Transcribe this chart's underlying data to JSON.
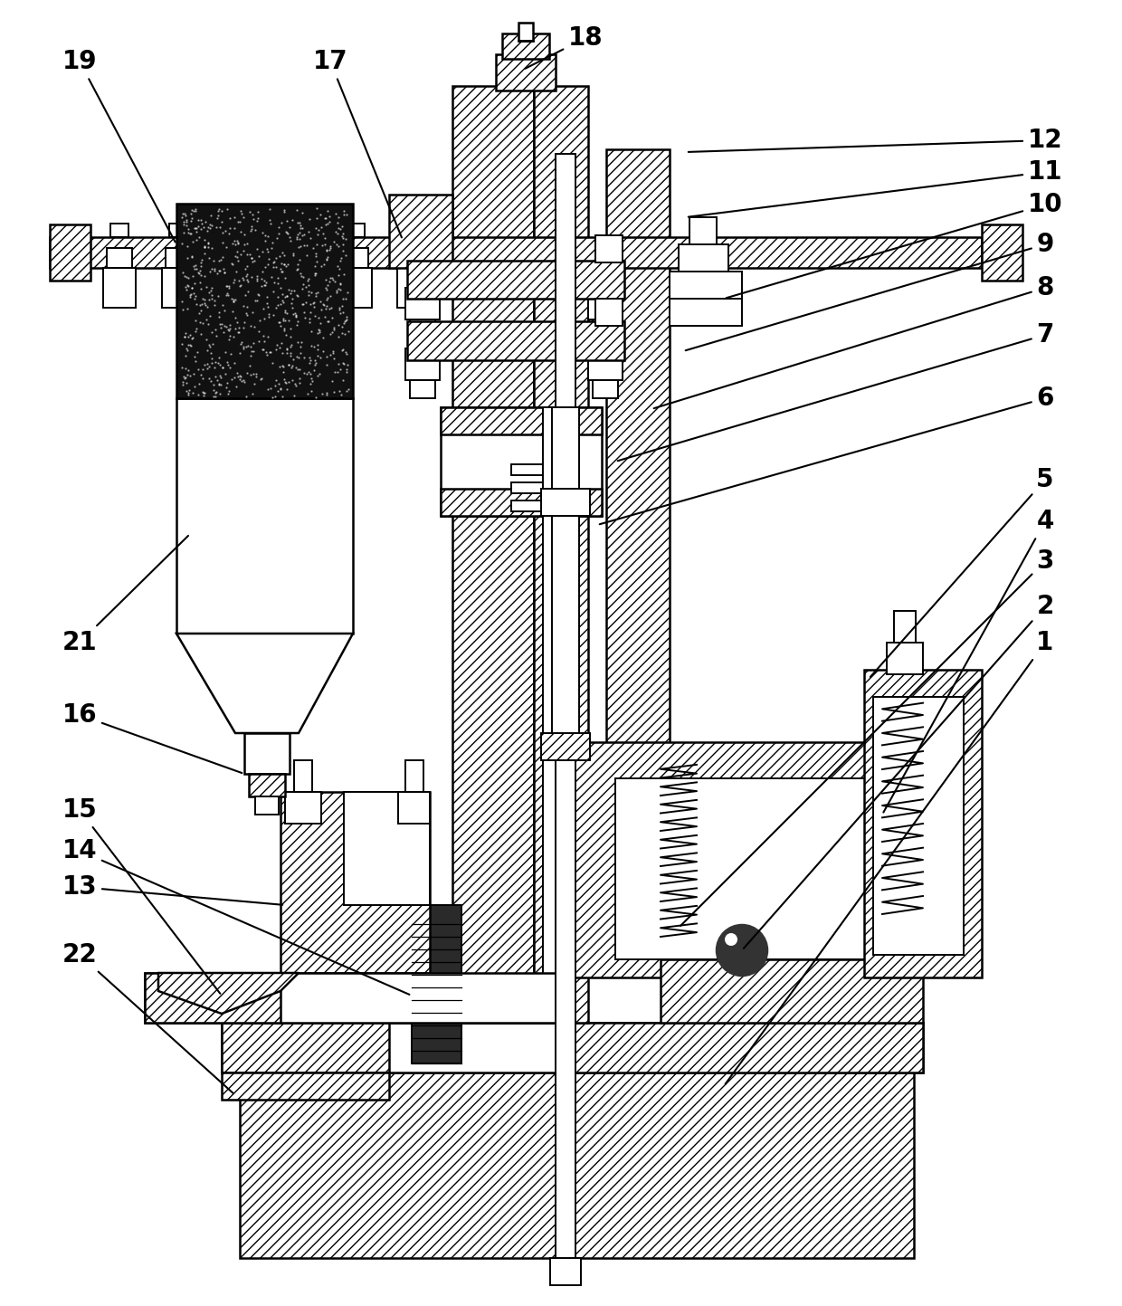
{
  "bg_color": "#ffffff",
  "line_color": "#000000",
  "figsize": [
    12.4,
    14.43
  ],
  "annotations": [
    [
      "19",
      [
        0.07,
        0.935
      ],
      [
        0.155,
        0.855
      ]
    ],
    [
      "17",
      [
        0.295,
        0.935
      ],
      [
        0.36,
        0.815
      ]
    ],
    [
      "18",
      [
        0.525,
        0.955
      ],
      [
        0.565,
        0.935
      ]
    ],
    [
      "12",
      [
        0.87,
        0.895
      ],
      [
        0.72,
        0.878
      ]
    ],
    [
      "11",
      [
        0.87,
        0.862
      ],
      [
        0.72,
        0.848
      ]
    ],
    [
      "10",
      [
        0.87,
        0.828
      ],
      [
        0.77,
        0.822
      ]
    ],
    [
      "9",
      [
        0.87,
        0.79
      ],
      [
        0.73,
        0.783
      ]
    ],
    [
      "8",
      [
        0.87,
        0.748
      ],
      [
        0.72,
        0.72
      ]
    ],
    [
      "7",
      [
        0.87,
        0.71
      ],
      [
        0.69,
        0.68
      ]
    ],
    [
      "6",
      [
        0.87,
        0.665
      ],
      [
        0.67,
        0.63
      ]
    ],
    [
      "5",
      [
        0.87,
        0.6
      ],
      [
        0.81,
        0.6
      ]
    ],
    [
      "4",
      [
        0.87,
        0.555
      ],
      [
        0.79,
        0.54
      ]
    ],
    [
      "3",
      [
        0.87,
        0.51
      ],
      [
        0.74,
        0.5
      ]
    ],
    [
      "2",
      [
        0.87,
        0.458
      ],
      [
        0.74,
        0.451
      ]
    ],
    [
      "1",
      [
        0.87,
        0.412
      ],
      [
        0.8,
        0.408
      ]
    ],
    [
      "13",
      [
        0.07,
        0.46
      ],
      [
        0.31,
        0.455
      ]
    ],
    [
      "14",
      [
        0.07,
        0.49
      ],
      [
        0.33,
        0.483
      ]
    ],
    [
      "15",
      [
        0.07,
        0.53
      ],
      [
        0.23,
        0.524
      ]
    ],
    [
      "16",
      [
        0.07,
        0.61
      ],
      [
        0.27,
        0.607
      ]
    ],
    [
      "21",
      [
        0.07,
        0.695
      ],
      [
        0.2,
        0.68
      ]
    ],
    [
      "22",
      [
        0.07,
        0.393
      ],
      [
        0.26,
        0.388
      ]
    ]
  ]
}
